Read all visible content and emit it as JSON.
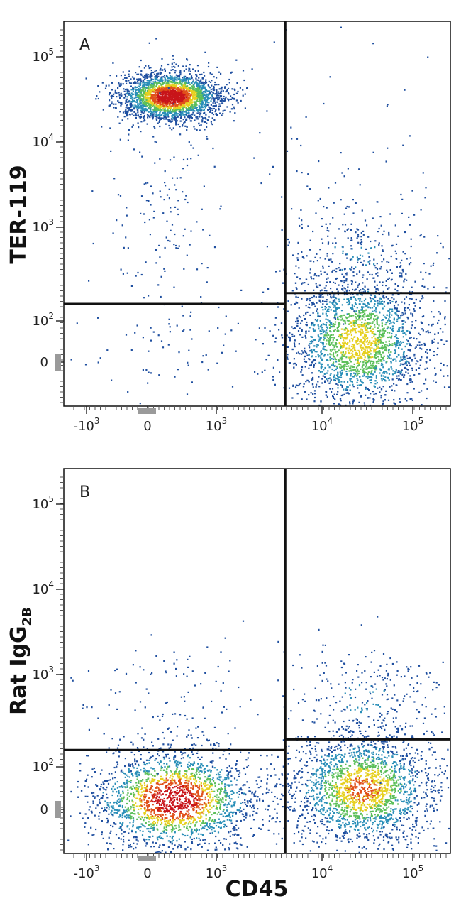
{
  "chart_data": [
    {
      "type": "scatter",
      "subtype": "flow-cytometry-density-dot-plot",
      "panel_label": "A",
      "xlabel": "",
      "ylabel": "TER-119",
      "x_scale": "biexponential",
      "y_scale": "biexponential",
      "x_ticks": [
        {
          "value": -1000,
          "label": "-10",
          "exp": "3"
        },
        {
          "value": 0,
          "label": "0",
          "exp": ""
        },
        {
          "value": 1000,
          "label": "10",
          "exp": "3"
        },
        {
          "value": 10000,
          "label": "10",
          "exp": "4"
        },
        {
          "value": 100000,
          "label": "10",
          "exp": "5"
        }
      ],
      "y_ticks": [
        {
          "value": 0,
          "label": "0",
          "exp": ""
        },
        {
          "value": 100,
          "label": "10",
          "exp": "2"
        },
        {
          "value": 1000,
          "label": "10",
          "exp": "3"
        },
        {
          "value": 10000,
          "label": "10",
          "exp": "4"
        },
        {
          "value": 100000,
          "label": "10",
          "exp": "5"
        }
      ],
      "quadrant_gates": {
        "x_divider": 4500,
        "y_divider_left": 160,
        "y_divider_right": 210
      },
      "populations": [
        {
          "quadrant": "upper-left",
          "center_x": 350,
          "center_y": 35000,
          "density": "high"
        },
        {
          "quadrant": "lower-right",
          "center_x": 30000,
          "center_y": 60,
          "density": "medium"
        }
      ],
      "grid": false
    },
    {
      "type": "scatter",
      "subtype": "flow-cytometry-density-dot-plot",
      "panel_label": "B",
      "xlabel": "CD45",
      "ylabel": "Rat IgG",
      "ylabel_subscript": "2B",
      "x_scale": "biexponential",
      "y_scale": "biexponential",
      "x_ticks": [
        {
          "value": -1000,
          "label": "-10",
          "exp": "3"
        },
        {
          "value": 0,
          "label": "0",
          "exp": ""
        },
        {
          "value": 1000,
          "label": "10",
          "exp": "3"
        },
        {
          "value": 10000,
          "label": "10",
          "exp": "4"
        },
        {
          "value": 100000,
          "label": "10",
          "exp": "5"
        }
      ],
      "y_ticks": [
        {
          "value": 0,
          "label": "0",
          "exp": ""
        },
        {
          "value": 100,
          "label": "10",
          "exp": "2"
        },
        {
          "value": 1000,
          "label": "10",
          "exp": "3"
        },
        {
          "value": 10000,
          "label": "10",
          "exp": "4"
        },
        {
          "value": 100000,
          "label": "10",
          "exp": "5"
        }
      ],
      "quadrant_gates": {
        "x_divider": 4500,
        "y_divider_left": 160,
        "y_divider_right": 210
      },
      "populations": [
        {
          "quadrant": "lower-left",
          "center_x": 400,
          "center_y": 10,
          "density": "high"
        },
        {
          "quadrant": "lower-right",
          "center_x": 30000,
          "center_y": 20,
          "density": "medium"
        }
      ],
      "grid": false
    }
  ],
  "colors": {
    "low": "#1f4fa0",
    "mid_low": "#2a8fb8",
    "mid": "#5cbf5a",
    "mid_high": "#e6d020",
    "high": "#e0501a",
    "peak": "#c8141a",
    "frame": "#111111"
  }
}
